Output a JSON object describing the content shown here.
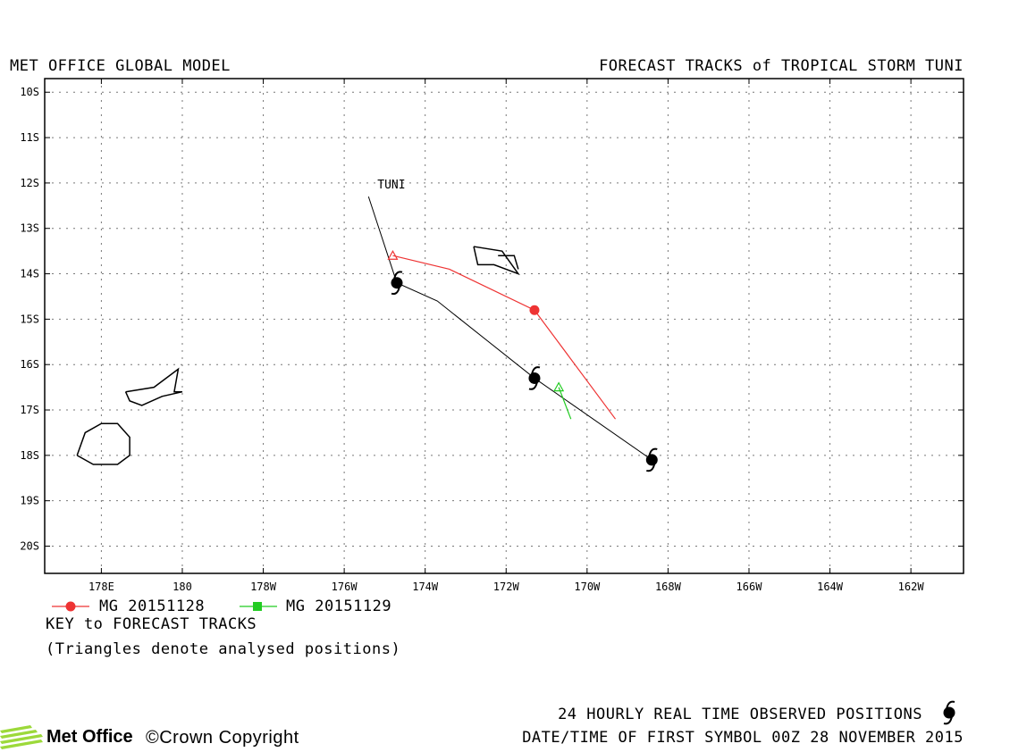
{
  "header": {
    "left_title": "MET OFFICE GLOBAL MODEL",
    "right_title": "FORECAST TRACKS of TROPICAL STORM TUNI"
  },
  "map": {
    "lat_labels": [
      "10S",
      "11S",
      "12S",
      "13S",
      "14S",
      "15S",
      "16S",
      "17S",
      "18S",
      "19S",
      "20S"
    ],
    "lon_labels": [
      "178E",
      "180",
      "178W",
      "176W",
      "174W",
      "172W",
      "170W",
      "168W",
      "166W",
      "164W",
      "162W"
    ],
    "lat_range": [
      -20.6,
      -9.7
    ],
    "lon_range": [
      176.6,
      199.3
    ],
    "grid": true,
    "storm_name": "TUNI",
    "observed_track": [
      {
        "lon": 184.6,
        "lat": -12.3
      },
      {
        "lon": 185.3,
        "lat": -14.2
      },
      {
        "lon": 186.3,
        "lat": -14.6
      },
      {
        "lon": 188.7,
        "lat": -16.3
      },
      {
        "lon": 191.6,
        "lat": -18.1
      }
    ],
    "observed_symbols": [
      {
        "lon": 185.3,
        "lat": -14.2
      },
      {
        "lon": 188.7,
        "lat": -16.3
      },
      {
        "lon": 191.6,
        "lat": -18.1
      }
    ],
    "forecast_tracks": [
      {
        "name": "MG 20151128",
        "color": "#ee3333",
        "analysed": {
          "lon": 185.2,
          "lat": -13.6
        },
        "points": [
          {
            "lon": 185.2,
            "lat": -13.6
          },
          {
            "lon": 186.6,
            "lat": -13.9
          },
          {
            "lon": 188.7,
            "lat": -14.8
          },
          {
            "lon": 190.7,
            "lat": -17.2
          }
        ],
        "markers": [
          {
            "lon": 188.7,
            "lat": -14.8
          }
        ]
      },
      {
        "name": "MG 20151129",
        "color": "#22cc22",
        "analysed": {
          "lon": 189.3,
          "lat": -16.5
        },
        "points": [
          {
            "lon": 189.3,
            "lat": -16.5
          },
          {
            "lon": 189.6,
            "lat": -17.2
          }
        ],
        "markers": []
      }
    ],
    "islands": [
      [
        [
          177.4,
          -18.0
        ],
        [
          177.6,
          -17.5
        ],
        [
          178.0,
          -17.3
        ],
        [
          178.4,
          -17.3
        ],
        [
          178.7,
          -17.6
        ],
        [
          178.7,
          -18.0
        ],
        [
          178.4,
          -18.2
        ],
        [
          177.8,
          -18.2
        ],
        [
          177.4,
          -18.0
        ]
      ],
      [
        [
          178.6,
          -16.6
        ],
        [
          179.3,
          -16.5
        ],
        [
          179.9,
          -16.1
        ],
        [
          179.8,
          -16.6
        ],
        [
          180.0,
          -16.6
        ],
        [
          179.5,
          -16.7
        ],
        [
          179.0,
          -16.9
        ],
        [
          178.7,
          -16.8
        ],
        [
          178.6,
          -16.6
        ]
      ],
      [
        [
          187.2,
          -13.4
        ],
        [
          187.9,
          -13.5
        ],
        [
          188.3,
          -14.0
        ],
        [
          187.7,
          -13.8
        ],
        [
          187.3,
          -13.8
        ],
        [
          187.2,
          -13.4
        ]
      ],
      [
        [
          187.8,
          -13.6
        ],
        [
          188.2,
          -13.6
        ],
        [
          188.3,
          -13.9
        ]
      ]
    ]
  },
  "legend": {
    "title": "KEY to FORECAST TRACKS",
    "note": "(Triangles denote analysed positions)"
  },
  "footer": {
    "logo_text": "Met Office",
    "copyright": "©Crown Copyright",
    "observed_line": "24 HOURLY REAL TIME OBSERVED POSITIONS",
    "datetime_line": "DATE/TIME OF FIRST SYMBOL 00Z 28 NOVEMBER 2015"
  }
}
